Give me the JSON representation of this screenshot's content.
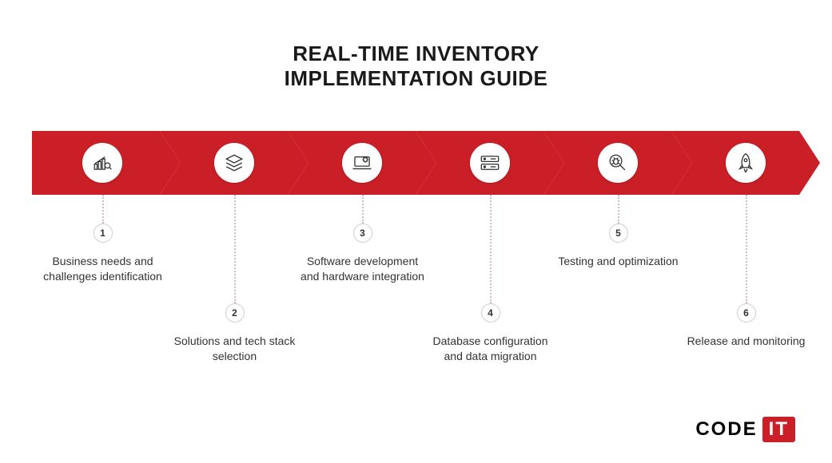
{
  "title_line1": "REAL-TIME INVENTORY",
  "title_line2": "IMPLEMENTATION GUIDE",
  "title_fontsize": 26,
  "title_color": "#1a1a1a",
  "chevron": {
    "color": "#ca1f27",
    "height": 80,
    "notch": 26,
    "segment_width": 160,
    "overlap": 0
  },
  "connector_color": "#d9b9bb",
  "badge_border_color": "#cfcfcf",
  "badge_text_color": "#333333",
  "label_fontsize": 14,
  "icon_stroke": "#333333",
  "background_color": "#ffffff",
  "steps": [
    {
      "num": "1",
      "label": "Business needs and challenges identification",
      "icon": "chart-magnify",
      "row": "top"
    },
    {
      "num": "2",
      "label": "Solutions and tech stack selection",
      "icon": "layers",
      "row": "bottom"
    },
    {
      "num": "3",
      "label": "Software development and hardware integration",
      "icon": "laptop-gear",
      "row": "top"
    },
    {
      "num": "4",
      "label": "Database configuration and data migration",
      "icon": "server",
      "row": "bottom"
    },
    {
      "num": "5",
      "label": "Testing and optimization",
      "icon": "bug-magnify",
      "row": "top"
    },
    {
      "num": "6",
      "label": "Release and monitoring",
      "icon": "rocket",
      "row": "bottom"
    }
  ],
  "row_offsets": {
    "top_connector_h": 36,
    "bottom_connector_h": 136,
    "label_gap": 14
  },
  "logo": {
    "word": "CODE",
    "suffix": "IT",
    "word_color": "#1a1a1a",
    "suffix_bg": "#ca1f27",
    "suffix_color": "#ffffff"
  }
}
